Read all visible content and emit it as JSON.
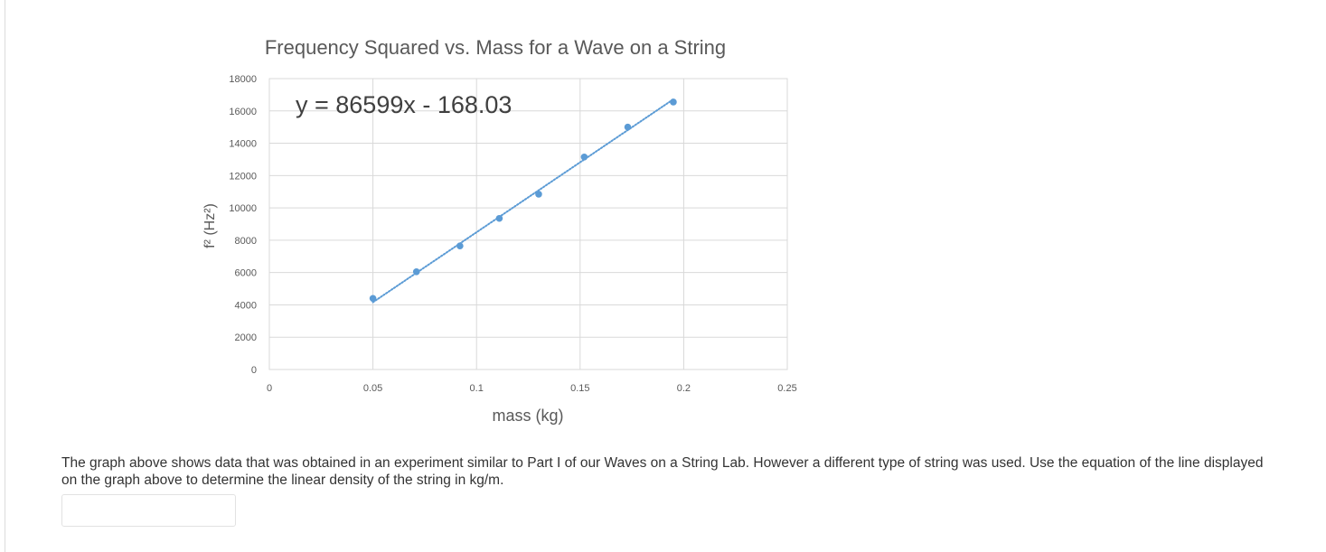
{
  "chart_data": {
    "type": "scatter",
    "title": "Frequency Squared vs. Mass for a Wave on a String",
    "xlabel": "mass (kg)",
    "ylabel": "f² (Hz²)",
    "xlim": [
      0,
      0.25
    ],
    "ylim": [
      0,
      18000
    ],
    "x_ticks": [
      0,
      0.05,
      0.1,
      0.15,
      0.2,
      0.25
    ],
    "x_tick_labels": [
      "0",
      "0.05",
      "0.1",
      "0.15",
      "0.2",
      "0.25"
    ],
    "y_ticks": [
      0,
      2000,
      4000,
      6000,
      8000,
      10000,
      12000,
      14000,
      16000,
      18000
    ],
    "y_tick_labels": [
      "0",
      "2000",
      "4000",
      "6000",
      "8000",
      "10000",
      "12000",
      "14000",
      "16000",
      "18000"
    ],
    "grid": true,
    "series": [
      {
        "x": [
          0.05,
          0.071,
          0.092,
          0.111,
          0.13,
          0.152,
          0.173,
          0.195
        ],
        "y": [
          4400,
          6050,
          7650,
          9350,
          10850,
          13150,
          15000,
          16550
        ],
        "color": "#5b9bd5"
      }
    ],
    "trendline": {
      "equation": "y = 86599x - 168.03",
      "slope": 86599,
      "intercept": -168.03,
      "x_range": [
        0.05,
        0.195
      ],
      "style": "dotted",
      "color": "#5b9bd5"
    }
  },
  "question": {
    "text": "The graph above shows data that was obtained in an experiment similar to Part I of our Waves on a String Lab. However a different type of string was used. Use the equation of the line displayed on the graph above to determine the linear density of the string in kg/m."
  },
  "answer": {
    "value": ""
  }
}
